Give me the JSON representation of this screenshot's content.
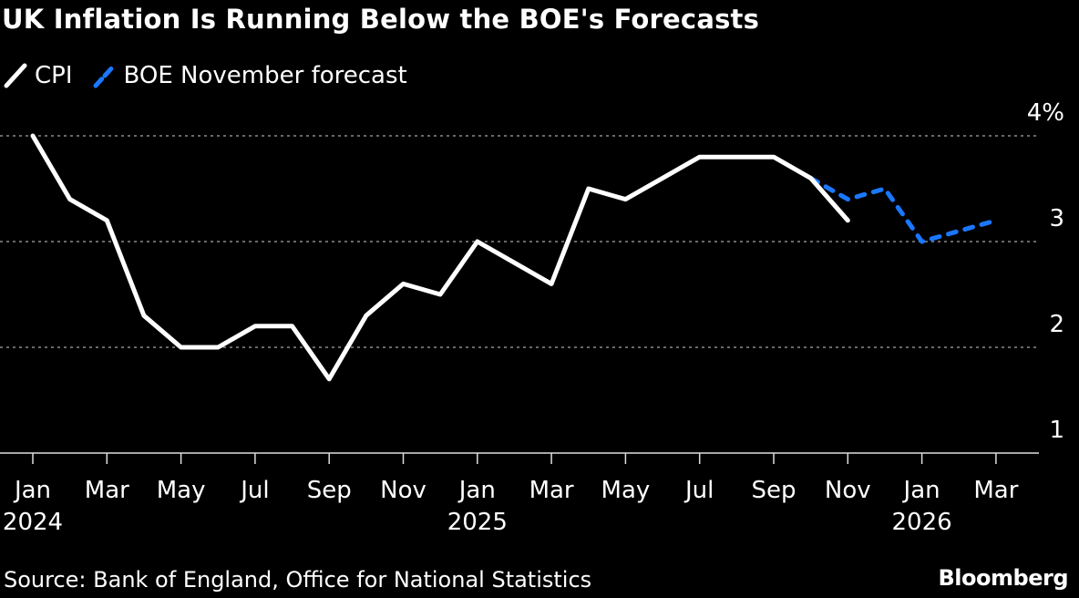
{
  "chart_data": {
    "type": "line",
    "title": "UK Inflation Is Running Below the BOE's Forecasts",
    "source": "Source: Bank of England, Office for National Statistics",
    "logo": "Bloomberg",
    "y_unit": "%",
    "ylim": [
      1,
      4
    ],
    "yticks": [
      {
        "value": 4,
        "label": "4%"
      },
      {
        "value": 3,
        "label": "3"
      },
      {
        "value": 2,
        "label": "2"
      },
      {
        "value": 1,
        "label": "1"
      }
    ],
    "grid": true,
    "legend_placement": "top-left",
    "x_months": [
      "2024-01",
      "2024-02",
      "2024-03",
      "2024-04",
      "2024-05",
      "2024-06",
      "2024-07",
      "2024-08",
      "2024-09",
      "2024-10",
      "2024-11",
      "2024-12",
      "2025-01",
      "2025-02",
      "2025-03",
      "2025-04",
      "2025-05",
      "2025-06",
      "2025-07",
      "2025-08",
      "2025-09",
      "2025-10",
      "2025-11",
      "2025-12",
      "2026-01",
      "2026-02",
      "2026-03"
    ],
    "xticks": [
      {
        "month": "2024-01",
        "label": "Jan",
        "year": "2024"
      },
      {
        "month": "2024-03",
        "label": "Mar",
        "year": ""
      },
      {
        "month": "2024-05",
        "label": "May",
        "year": ""
      },
      {
        "month": "2024-07",
        "label": "Jul",
        "year": ""
      },
      {
        "month": "2024-09",
        "label": "Sep",
        "year": ""
      },
      {
        "month": "2024-11",
        "label": "Nov",
        "year": ""
      },
      {
        "month": "2025-01",
        "label": "Jan",
        "year": "2025"
      },
      {
        "month": "2025-03",
        "label": "Mar",
        "year": ""
      },
      {
        "month": "2025-05",
        "label": "May",
        "year": ""
      },
      {
        "month": "2025-07",
        "label": "Jul",
        "year": ""
      },
      {
        "month": "2025-09",
        "label": "Sep",
        "year": ""
      },
      {
        "month": "2025-11",
        "label": "Nov",
        "year": ""
      },
      {
        "month": "2026-01",
        "label": "Jan",
        "year": "2026"
      },
      {
        "month": "2026-03",
        "label": "Mar",
        "year": ""
      }
    ],
    "series": [
      {
        "name": "CPI",
        "color": "#ffffff",
        "style": "solid",
        "points": [
          [
            "2024-01",
            4.0
          ],
          [
            "2024-02",
            3.4
          ],
          [
            "2024-03",
            3.2
          ],
          [
            "2024-04",
            2.3
          ],
          [
            "2024-05",
            2.0
          ],
          [
            "2024-06",
            2.0
          ],
          [
            "2024-07",
            2.2
          ],
          [
            "2024-08",
            2.2
          ],
          [
            "2024-09",
            1.7
          ],
          [
            "2024-10",
            2.3
          ],
          [
            "2024-11",
            2.6
          ],
          [
            "2024-12",
            2.5
          ],
          [
            "2025-01",
            3.0
          ],
          [
            "2025-02",
            2.8
          ],
          [
            "2025-03",
            2.6
          ],
          [
            "2025-04",
            3.5
          ],
          [
            "2025-05",
            3.4
          ],
          [
            "2025-06",
            3.6
          ],
          [
            "2025-07",
            3.8
          ],
          [
            "2025-08",
            3.8
          ],
          [
            "2025-09",
            3.8
          ],
          [
            "2025-10",
            3.6
          ],
          [
            "2025-11",
            3.2
          ]
        ]
      },
      {
        "name": "BOE November forecast",
        "color": "#1a78ff",
        "style": "dashed",
        "points": [
          [
            "2025-10",
            3.6
          ],
          [
            "2025-11",
            3.4
          ],
          [
            "2025-12",
            3.5
          ],
          [
            "2026-01",
            3.0
          ],
          [
            "2026-02",
            3.1
          ],
          [
            "2026-03",
            3.2
          ]
        ]
      }
    ]
  }
}
